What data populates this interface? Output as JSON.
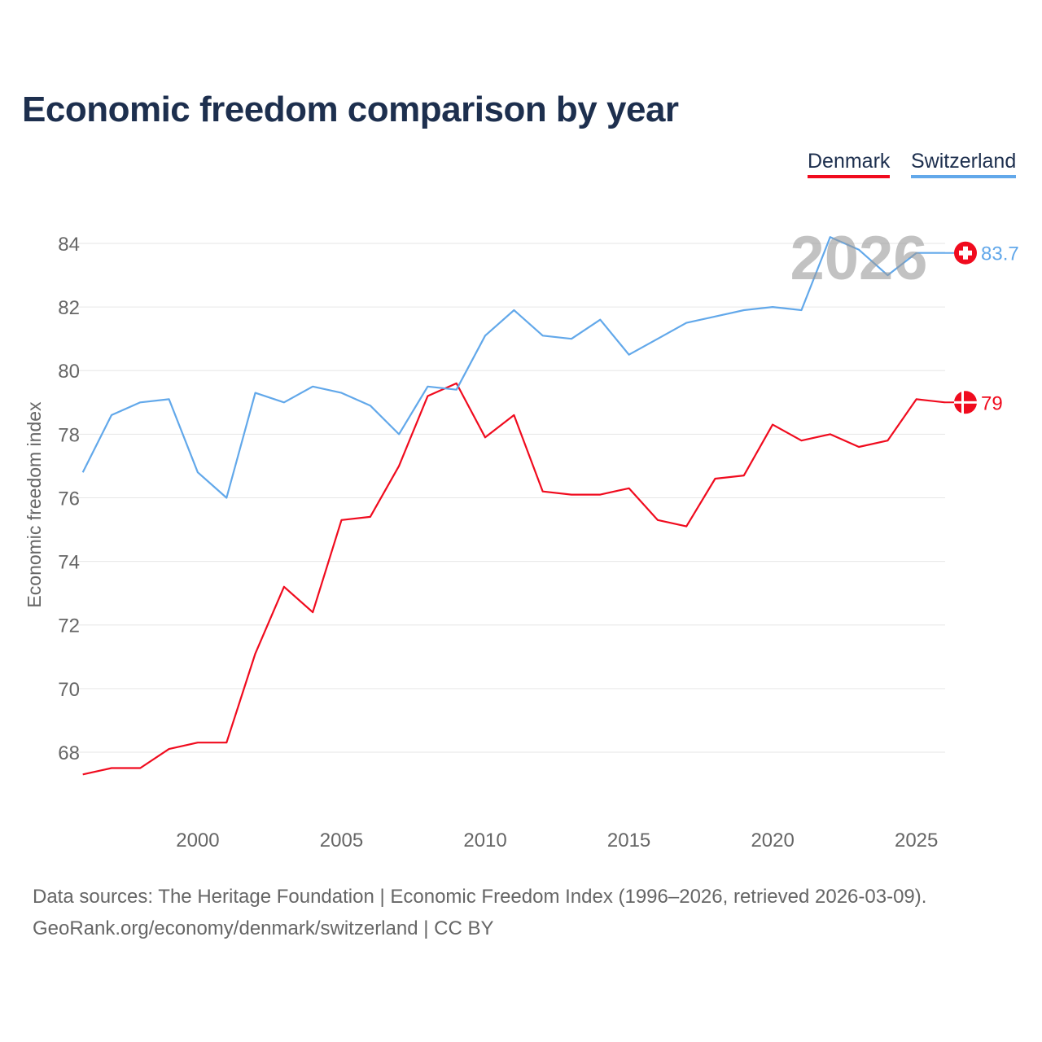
{
  "chart_data": {
    "type": "line",
    "title": "Economic freedom comparison by year",
    "xlabel": "",
    "ylabel": "Economic freedom index",
    "xlim": [
      1996,
      2026
    ],
    "ylim": [
      66.5,
      85
    ],
    "x_ticks": [
      2000,
      2005,
      2010,
      2015,
      2020,
      2025
    ],
    "y_ticks": [
      68,
      70,
      72,
      74,
      76,
      78,
      80,
      82,
      84
    ],
    "grid": true,
    "legend_position": "top-right",
    "watermark_year": "2026",
    "x": [
      1996,
      1997,
      1998,
      1999,
      2000,
      2001,
      2002,
      2003,
      2004,
      2005,
      2006,
      2007,
      2008,
      2009,
      2010,
      2011,
      2012,
      2013,
      2014,
      2015,
      2016,
      2017,
      2018,
      2019,
      2020,
      2021,
      2022,
      2023,
      2024,
      2025,
      2026
    ],
    "series": [
      {
        "name": "Denmark",
        "color": "#f00b1e",
        "end_label": "79",
        "values": [
          67.3,
          67.5,
          67.5,
          68.1,
          68.3,
          68.3,
          71.1,
          73.2,
          72.4,
          75.3,
          75.4,
          77.0,
          79.2,
          79.6,
          77.9,
          78.6,
          76.2,
          76.1,
          76.1,
          76.3,
          75.3,
          75.1,
          76.6,
          76.7,
          78.3,
          77.8,
          78.0,
          77.6,
          77.8,
          79.1,
          79.0
        ]
      },
      {
        "name": "Switzerland",
        "color": "#62a8ea",
        "end_label": "83.7",
        "values": [
          76.8,
          78.6,
          79.0,
          79.1,
          76.8,
          76.0,
          79.3,
          79.0,
          79.5,
          79.3,
          78.9,
          78.0,
          79.5,
          79.4,
          81.1,
          81.9,
          81.1,
          81.0,
          81.6,
          80.5,
          81.0,
          81.5,
          81.7,
          81.9,
          82.0,
          81.9,
          84.2,
          83.8,
          83.0,
          83.7,
          83.7
        ]
      }
    ]
  },
  "footer": {
    "sources": "Data sources: The Heritage Foundation | Economic Freedom Index (1996–2026, retrieved 2026-03-09).",
    "credit": "GeoRank.org/economy/denmark/switzerland | CC BY"
  }
}
